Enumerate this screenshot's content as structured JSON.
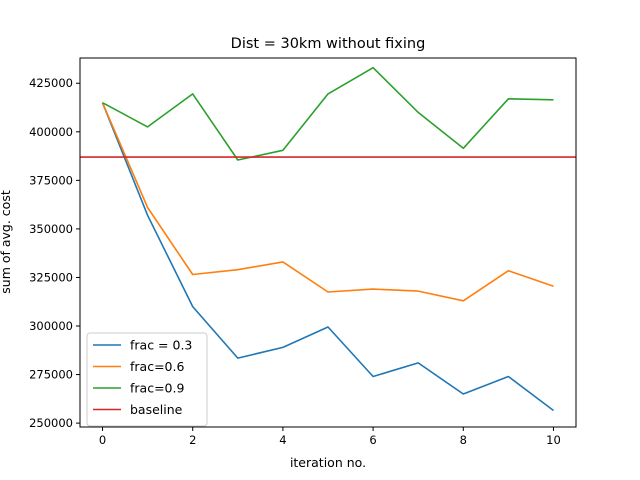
{
  "chart_data": {
    "type": "line",
    "title": "Dist = 30km without fixing",
    "xlabel": "iteration no.",
    "ylabel": "sum of avg. cost",
    "xlim": [
      -0.5,
      10.5
    ],
    "ylim": [
      248000,
      438000
    ],
    "xticks": [
      0,
      2,
      4,
      6,
      8,
      10
    ],
    "xtick_labels": [
      "0",
      "2",
      "4",
      "6",
      "8",
      "10"
    ],
    "yticks": [
      250000,
      275000,
      300000,
      325000,
      350000,
      375000,
      400000,
      425000
    ],
    "ytick_labels": [
      "250000",
      "275000",
      "300000",
      "325000",
      "350000",
      "375000",
      "400000",
      "425000"
    ],
    "grid": false,
    "legend_position": "lower-left",
    "x": [
      0,
      1,
      2,
      3,
      4,
      5,
      6,
      7,
      8,
      9,
      10
    ],
    "series": [
      {
        "name": "frac = 0.3",
        "color": "#1f77b4",
        "values": [
          415000,
          357000,
          310000,
          283500,
          289000,
          299500,
          274000,
          281000,
          265000,
          274000,
          256500
        ]
      },
      {
        "name": "frac=0.6",
        "color": "#ff7f0e",
        "values": [
          415000,
          361000,
          326500,
          329000,
          333000,
          317500,
          319000,
          318000,
          313000,
          328500,
          320500
        ]
      },
      {
        "name": "frac=0.9",
        "color": "#2ca02c",
        "values": [
          415000,
          402500,
          419500,
          385500,
          390500,
          419500,
          433000,
          410000,
          391500,
          417000,
          416500
        ]
      }
    ],
    "baseline": {
      "name": "baseline",
      "color": "#d62728",
      "value": 387000
    }
  }
}
